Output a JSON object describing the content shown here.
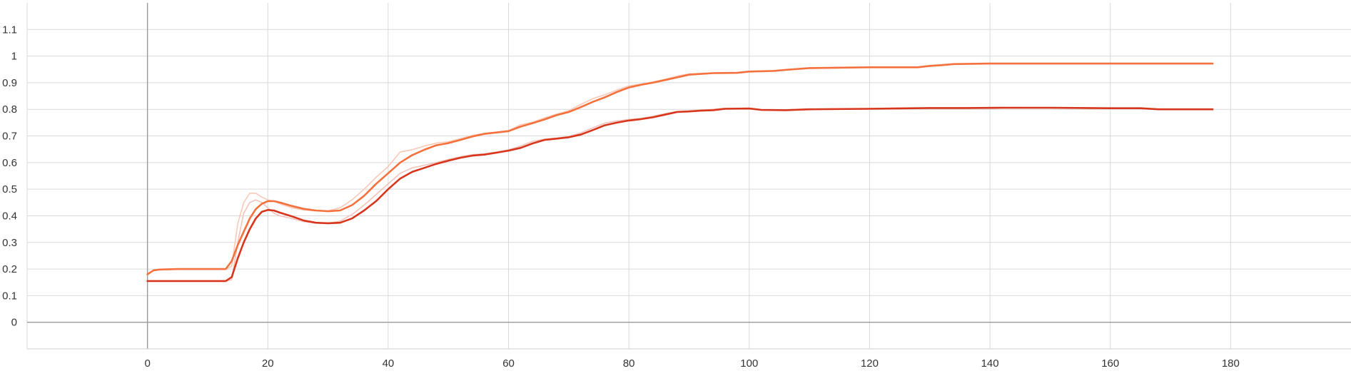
{
  "chart_data": {
    "type": "line",
    "title": "",
    "xlabel": "",
    "ylabel": "",
    "xlim": [
      -20,
      200
    ],
    "ylim": [
      -0.1,
      1.2
    ],
    "x_ticks": [
      0,
      20,
      40,
      60,
      80,
      100,
      120,
      140,
      160,
      180
    ],
    "x_tick_labels": [
      "0",
      "20",
      "40",
      "60",
      "80",
      "100",
      "120",
      "140",
      "160",
      "180"
    ],
    "y_ticks": [
      0,
      0.1,
      0.2,
      0.3,
      0.4,
      0.5,
      0.6,
      0.7,
      0.8,
      0.9,
      1,
      1.1
    ],
    "y_tick_labels": [
      "0",
      "0.1",
      "0.2",
      "0.3",
      "0.4",
      "0.5",
      "0.6",
      "0.7",
      "0.8",
      "0.9",
      "1",
      "1.1"
    ],
    "grid": true,
    "series": [
      {
        "color": "#f4713d",
        "raw_color": "#f9c9b8",
        "smoothed": [
          [
            0,
            0.18
          ],
          [
            1,
            0.195
          ],
          [
            2,
            0.198
          ],
          [
            5,
            0.2
          ],
          [
            10,
            0.2
          ],
          [
            13,
            0.2
          ],
          [
            14,
            0.23
          ],
          [
            15,
            0.29
          ],
          [
            16,
            0.34
          ],
          [
            17,
            0.39
          ],
          [
            18,
            0.425
          ],
          [
            19,
            0.445
          ],
          [
            20,
            0.455
          ],
          [
            21,
            0.455
          ],
          [
            22,
            0.45
          ],
          [
            24,
            0.437
          ],
          [
            26,
            0.426
          ],
          [
            28,
            0.42
          ],
          [
            30,
            0.417
          ],
          [
            32,
            0.42
          ],
          [
            34,
            0.44
          ],
          [
            36,
            0.475
          ],
          [
            38,
            0.52
          ],
          [
            40,
            0.56
          ],
          [
            42,
            0.6
          ],
          [
            44,
            0.628
          ],
          [
            46,
            0.648
          ],
          [
            48,
            0.665
          ],
          [
            50,
            0.673
          ],
          [
            52,
            0.685
          ],
          [
            54,
            0.698
          ],
          [
            56,
            0.708
          ],
          [
            58,
            0.713
          ],
          [
            60,
            0.718
          ],
          [
            62,
            0.735
          ],
          [
            64,
            0.748
          ],
          [
            66,
            0.762
          ],
          [
            68,
            0.778
          ],
          [
            70,
            0.79
          ],
          [
            72,
            0.808
          ],
          [
            74,
            0.828
          ],
          [
            76,
            0.845
          ],
          [
            78,
            0.865
          ],
          [
            80,
            0.882
          ],
          [
            82,
            0.892
          ],
          [
            84,
            0.9
          ],
          [
            86,
            0.91
          ],
          [
            88,
            0.92
          ],
          [
            90,
            0.93
          ],
          [
            94,
            0.936
          ],
          [
            98,
            0.937
          ],
          [
            100,
            0.942
          ],
          [
            104,
            0.944
          ],
          [
            106,
            0.948
          ],
          [
            110,
            0.955
          ],
          [
            120,
            0.958
          ],
          [
            128,
            0.958
          ],
          [
            130,
            0.963
          ],
          [
            132,
            0.966
          ],
          [
            134,
            0.97
          ],
          [
            140,
            0.972
          ],
          [
            150,
            0.972
          ],
          [
            160,
            0.972
          ],
          [
            177,
            0.972
          ]
        ],
        "raw": [
          [
            0,
            0.18
          ],
          [
            1,
            0.195
          ],
          [
            2,
            0.198
          ],
          [
            5,
            0.2
          ],
          [
            10,
            0.2
          ],
          [
            13,
            0.2
          ],
          [
            14,
            0.21
          ],
          [
            15,
            0.37
          ],
          [
            16,
            0.45
          ],
          [
            17,
            0.485
          ],
          [
            18,
            0.485
          ],
          [
            19,
            0.47
          ],
          [
            20,
            0.46
          ],
          [
            21,
            0.455
          ],
          [
            22,
            0.445
          ],
          [
            24,
            0.43
          ],
          [
            26,
            0.422
          ],
          [
            28,
            0.418
          ],
          [
            30,
            0.418
          ],
          [
            32,
            0.43
          ],
          [
            34,
            0.46
          ],
          [
            36,
            0.5
          ],
          [
            38,
            0.545
          ],
          [
            40,
            0.585
          ],
          [
            42,
            0.64
          ],
          [
            44,
            0.648
          ],
          [
            46,
            0.662
          ],
          [
            48,
            0.673
          ],
          [
            50,
            0.678
          ],
          [
            52,
            0.69
          ],
          [
            54,
            0.702
          ],
          [
            56,
            0.71
          ],
          [
            58,
            0.714
          ],
          [
            60,
            0.72
          ],
          [
            62,
            0.742
          ],
          [
            64,
            0.752
          ],
          [
            66,
            0.768
          ],
          [
            68,
            0.782
          ],
          [
            70,
            0.795
          ],
          [
            72,
            0.818
          ],
          [
            74,
            0.84
          ],
          [
            76,
            0.855
          ],
          [
            78,
            0.872
          ],
          [
            80,
            0.888
          ],
          [
            82,
            0.895
          ],
          [
            84,
            0.903
          ],
          [
            86,
            0.913
          ],
          [
            88,
            0.925
          ],
          [
            90,
            0.933
          ],
          [
            94,
            0.937
          ],
          [
            98,
            0.938
          ],
          [
            100,
            0.943
          ],
          [
            104,
            0.946
          ],
          [
            106,
            0.95
          ],
          [
            110,
            0.956
          ],
          [
            120,
            0.958
          ],
          [
            128,
            0.959
          ],
          [
            130,
            0.965
          ],
          [
            132,
            0.968
          ],
          [
            134,
            0.971
          ],
          [
            140,
            0.972
          ],
          [
            150,
            0.972
          ],
          [
            160,
            0.972
          ],
          [
            177,
            0.972
          ]
        ]
      },
      {
        "color": "#d8361c",
        "raw_color": "#f3c3bb",
        "smoothed": [
          [
            0,
            0.155
          ],
          [
            5,
            0.155
          ],
          [
            10,
            0.155
          ],
          [
            13,
            0.155
          ],
          [
            14,
            0.17
          ],
          [
            15,
            0.24
          ],
          [
            16,
            0.3
          ],
          [
            17,
            0.35
          ],
          [
            18,
            0.39
          ],
          [
            19,
            0.415
          ],
          [
            20,
            0.422
          ],
          [
            21,
            0.42
          ],
          [
            22,
            0.412
          ],
          [
            24,
            0.398
          ],
          [
            26,
            0.382
          ],
          [
            28,
            0.374
          ],
          [
            30,
            0.372
          ],
          [
            32,
            0.374
          ],
          [
            34,
            0.39
          ],
          [
            36,
            0.42
          ],
          [
            38,
            0.455
          ],
          [
            40,
            0.5
          ],
          [
            42,
            0.54
          ],
          [
            44,
            0.565
          ],
          [
            46,
            0.58
          ],
          [
            48,
            0.595
          ],
          [
            50,
            0.607
          ],
          [
            52,
            0.618
          ],
          [
            54,
            0.626
          ],
          [
            56,
            0.63
          ],
          [
            58,
            0.637
          ],
          [
            60,
            0.645
          ],
          [
            62,
            0.655
          ],
          [
            64,
            0.672
          ],
          [
            66,
            0.685
          ],
          [
            68,
            0.69
          ],
          [
            70,
            0.695
          ],
          [
            72,
            0.705
          ],
          [
            74,
            0.722
          ],
          [
            76,
            0.74
          ],
          [
            78,
            0.75
          ],
          [
            80,
            0.758
          ],
          [
            82,
            0.763
          ],
          [
            84,
            0.77
          ],
          [
            86,
            0.78
          ],
          [
            88,
            0.79
          ],
          [
            90,
            0.792
          ],
          [
            92,
            0.795
          ],
          [
            94,
            0.797
          ],
          [
            96,
            0.802
          ],
          [
            100,
            0.803
          ],
          [
            102,
            0.798
          ],
          [
            106,
            0.797
          ],
          [
            110,
            0.8
          ],
          [
            120,
            0.802
          ],
          [
            130,
            0.805
          ],
          [
            136,
            0.805
          ],
          [
            142,
            0.806
          ],
          [
            150,
            0.806
          ],
          [
            160,
            0.804
          ],
          [
            165,
            0.804
          ],
          [
            168,
            0.8
          ],
          [
            177,
            0.8
          ]
        ],
        "raw": [
          [
            0,
            0.155
          ],
          [
            5,
            0.155
          ],
          [
            10,
            0.155
          ],
          [
            13,
            0.155
          ],
          [
            14,
            0.16
          ],
          [
            15,
            0.3
          ],
          [
            16,
            0.41
          ],
          [
            17,
            0.45
          ],
          [
            18,
            0.46
          ],
          [
            19,
            0.45
          ],
          [
            20,
            0.43
          ],
          [
            21,
            0.41
          ],
          [
            22,
            0.4
          ],
          [
            24,
            0.39
          ],
          [
            26,
            0.378
          ],
          [
            28,
            0.373
          ],
          [
            30,
            0.372
          ],
          [
            32,
            0.38
          ],
          [
            34,
            0.405
          ],
          [
            36,
            0.44
          ],
          [
            38,
            0.48
          ],
          [
            40,
            0.52
          ],
          [
            42,
            0.56
          ],
          [
            44,
            0.58
          ],
          [
            46,
            0.59
          ],
          [
            48,
            0.6
          ],
          [
            50,
            0.612
          ],
          [
            52,
            0.622
          ],
          [
            54,
            0.63
          ],
          [
            56,
            0.633
          ],
          [
            58,
            0.64
          ],
          [
            60,
            0.648
          ],
          [
            62,
            0.662
          ],
          [
            64,
            0.68
          ],
          [
            66,
            0.688
          ],
          [
            68,
            0.692
          ],
          [
            70,
            0.698
          ],
          [
            72,
            0.712
          ],
          [
            74,
            0.73
          ],
          [
            76,
            0.748
          ],
          [
            78,
            0.756
          ],
          [
            80,
            0.762
          ],
          [
            82,
            0.766
          ],
          [
            84,
            0.774
          ],
          [
            86,
            0.784
          ],
          [
            88,
            0.792
          ],
          [
            90,
            0.794
          ],
          [
            92,
            0.797
          ],
          [
            94,
            0.8
          ],
          [
            96,
            0.804
          ],
          [
            100,
            0.803
          ],
          [
            102,
            0.797
          ],
          [
            106,
            0.797
          ],
          [
            110,
            0.801
          ],
          [
            120,
            0.803
          ],
          [
            130,
            0.806
          ],
          [
            136,
            0.806
          ],
          [
            142,
            0.807
          ],
          [
            150,
            0.806
          ],
          [
            160,
            0.803
          ],
          [
            165,
            0.803
          ],
          [
            168,
            0.8
          ],
          [
            177,
            0.8
          ]
        ]
      }
    ]
  }
}
